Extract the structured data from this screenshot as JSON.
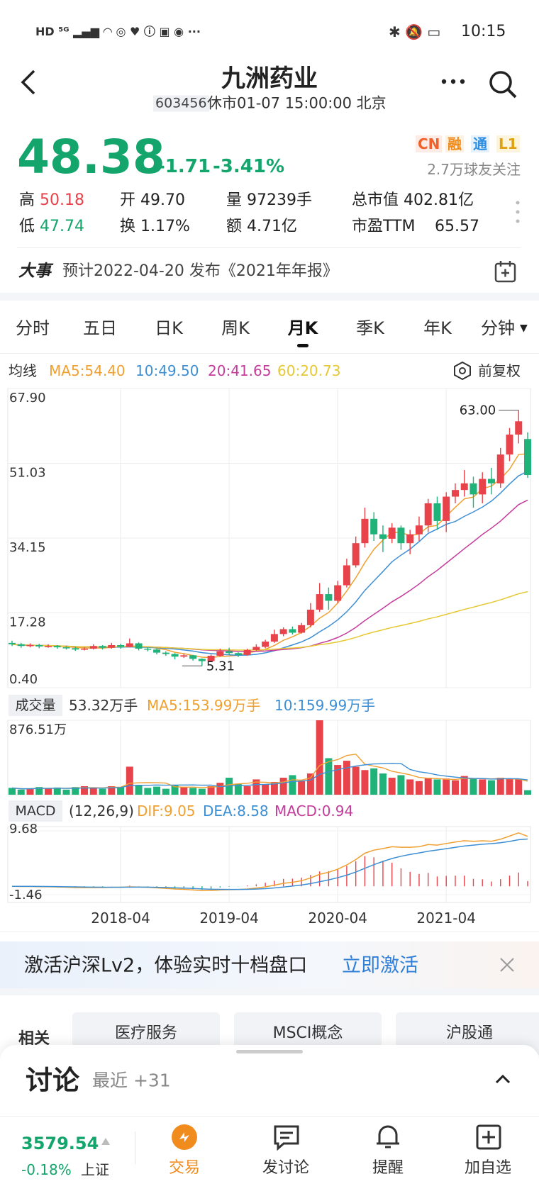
{
  "status_bar": {
    "time": "10:15"
  },
  "header": {
    "title": "九洲药业",
    "code": "603456",
    "status": "休市01-07 15:00:00 北京"
  },
  "quote": {
    "price": "48.38",
    "change": "-1.71",
    "change_pct": "-3.41%",
    "badges": [
      "CN",
      "融",
      "通",
      "L1"
    ],
    "followers": "2.7万球友关注",
    "stats": [
      {
        "label": "高",
        "value": "50.18"
      },
      {
        "label": "开",
        "value": "49.70"
      },
      {
        "label": "量",
        "value": "97239手"
      },
      {
        "label": "总市值",
        "value": "402.81亿"
      },
      {
        "label": "低",
        "value": "47.74"
      },
      {
        "label": "换",
        "value": "1.17%"
      },
      {
        "label": "额",
        "value": "4.71亿"
      },
      {
        "label": "市盈TTM",
        "value": "65.57"
      }
    ]
  },
  "event": {
    "label": "大事",
    "text": "预计2022-04-20 发布《2021年年报》"
  },
  "tabs": [
    "分时",
    "五日",
    "日K",
    "周K",
    "月K",
    "季K",
    "年K",
    "分钟"
  ],
  "active_tab": 4,
  "chart_data": {
    "type": "candlestick",
    "ma_label": "均线",
    "ma_values": [
      "MA5:54.40",
      "10:49.50",
      "20:41.65",
      "60:20.73"
    ],
    "ma_colors": [
      "#f0a030",
      "#3d8fd4",
      "#c43c9c",
      "#e6c832"
    ],
    "adjust": "前复权",
    "up_color": "#e8424a",
    "down_color": "#1fb37a",
    "categories": [
      null,
      null,
      null,
      null,
      null,
      null,
      null,
      null,
      null,
      null,
      null,
      null,
      "2018-04",
      null,
      null,
      null,
      null,
      null,
      null,
      null,
      null,
      null,
      null,
      null,
      "2019-04",
      null,
      null,
      null,
      null,
      null,
      null,
      null,
      null,
      null,
      null,
      null,
      "2020-04",
      null,
      null,
      null,
      null,
      null,
      null,
      null,
      null,
      null,
      null,
      null,
      "2021-04",
      null,
      null,
      null,
      null,
      null,
      null,
      null,
      null,
      null
    ],
    "open": [
      10.5,
      10.2,
      9.8,
      10.0,
      9.7,
      9.8,
      9.5,
      9.3,
      9.0,
      9.2,
      9.8,
      9.4,
      10.0,
      9.6,
      10.4,
      9.2,
      9.0,
      8.3,
      8.0,
      7.4,
      7.7,
      6.9,
      6.4,
      7.6,
      8.6,
      8.2,
      7.8,
      8.9,
      9.6,
      10.8,
      12.5,
      13.6,
      12.8,
      14.5,
      18.0,
      21.5,
      20.0,
      23.5,
      28.0,
      33.0,
      38.5,
      35.0,
      34.0,
      36.5,
      33.0,
      35.0,
      37.0,
      42.0,
      38.0,
      43.5,
      45.0,
      46.5,
      44.0,
      47.5,
      46.5,
      53.0,
      57.5,
      56.5
    ],
    "close": [
      10.2,
      9.8,
      10.0,
      9.7,
      9.8,
      9.5,
      9.3,
      9.0,
      9.2,
      9.8,
      9.4,
      10.0,
      9.6,
      10.4,
      9.2,
      9.0,
      8.3,
      8.0,
      7.4,
      7.7,
      6.9,
      6.4,
      7.6,
      8.6,
      8.2,
      7.8,
      8.9,
      9.6,
      10.8,
      12.5,
      13.6,
      12.8,
      14.5,
      18.0,
      21.5,
      20.0,
      23.5,
      28.0,
      33.0,
      38.5,
      35.0,
      34.0,
      36.5,
      33.0,
      35.0,
      37.0,
      42.0,
      38.0,
      43.5,
      45.0,
      46.5,
      44.0,
      47.5,
      46.5,
      53.0,
      57.5,
      60.5,
      48.38
    ],
    "high": [
      11.0,
      10.5,
      10.4,
      10.3,
      10.2,
      10.0,
      9.8,
      9.6,
      9.5,
      10.2,
      10.0,
      10.5,
      10.3,
      11.5,
      10.6,
      9.5,
      9.2,
      8.6,
      8.2,
      8.0,
      7.8,
      7.0,
      7.9,
      9.2,
      9.4,
      8.4,
      9.2,
      10.2,
      11.2,
      13.5,
      14.0,
      14.2,
      15.0,
      19.5,
      24.0,
      23.0,
      24.5,
      29.5,
      34.5,
      41.0,
      40.0,
      37.0,
      37.5,
      37.0,
      36.0,
      39.0,
      43.0,
      43.5,
      44.5,
      46.5,
      49.5,
      48.0,
      49.0,
      50.0,
      54.5,
      59.0,
      63.0,
      58.0
    ],
    "low": [
      9.8,
      9.4,
      9.5,
      9.3,
      9.4,
      9.2,
      9.0,
      8.7,
      8.8,
      9.0,
      9.0,
      9.2,
      9.2,
      9.5,
      8.8,
      8.6,
      7.9,
      7.6,
      6.8,
      7.1,
      6.5,
      5.31,
      6.2,
      7.4,
      7.8,
      7.3,
      7.6,
      8.6,
      9.3,
      10.5,
      12.0,
      12.4,
      12.6,
      14.0,
      17.5,
      18.0,
      19.5,
      23.0,
      27.5,
      32.0,
      33.5,
      31.0,
      33.0,
      31.5,
      30.5,
      33.5,
      35.5,
      36.0,
      35.5,
      42.0,
      43.5,
      41.0,
      42.0,
      44.0,
      45.5,
      51.5,
      55.5,
      47.74
    ],
    "ylim": [
      0.4,
      67.9
    ],
    "yticks": [
      {
        "value": 67.9,
        "label": "67.90"
      },
      51.03,
      34.15,
      17.28,
      {
        "value": 0.4,
        "label": "0.40"
      }
    ],
    "max_label": "63.00",
    "min_label": "5.31",
    "volume": {
      "title": "成交量",
      "texts": [
        "53.32万手",
        "MA5:153.99万手",
        "10:159.99万手"
      ],
      "values": [
        80,
        60,
        70,
        90,
        75,
        85,
        60,
        90,
        100,
        80,
        70,
        100,
        90,
        330,
        110,
        80,
        95,
        70,
        110,
        90,
        80,
        70,
        100,
        140,
        200,
        130,
        100,
        180,
        120,
        150,
        200,
        230,
        160,
        250,
        876.51,
        430,
        350,
        400,
        330,
        290,
        310,
        250,
        200,
        230,
        180,
        160,
        200,
        180,
        190,
        170,
        220,
        190,
        180,
        170,
        200,
        190,
        180,
        53.32
      ],
      "ylim": [
        0,
        876.51
      ],
      "yticks": [
        {
          "value": 876.51,
          "label": "876.51万"
        }
      ]
    },
    "macd": {
      "title": "MACD",
      "params": "(12,26,9)",
      "texts": [
        "DIF:9.05",
        "DEA:8.58",
        "MACD:0.94"
      ],
      "ylim": [
        -1.46,
        9.68
      ],
      "yticks": [
        9.68,
        -1.46
      ]
    }
  },
  "promo": {
    "text": "激活沪深Lv2，体验实时十档盘口",
    "action": "立即激活"
  },
  "related": {
    "label": "相关",
    "tags": [
      "医疗服务",
      "MSCI概念",
      "沪股通"
    ]
  },
  "discussion": {
    "title": "讨论",
    "recent": "最近 +31"
  },
  "index": {
    "value": "3579.54",
    "change": "-0.18%",
    "name": "上证"
  },
  "nav": [
    "交易",
    "发讨论",
    "提醒",
    "加自选"
  ]
}
